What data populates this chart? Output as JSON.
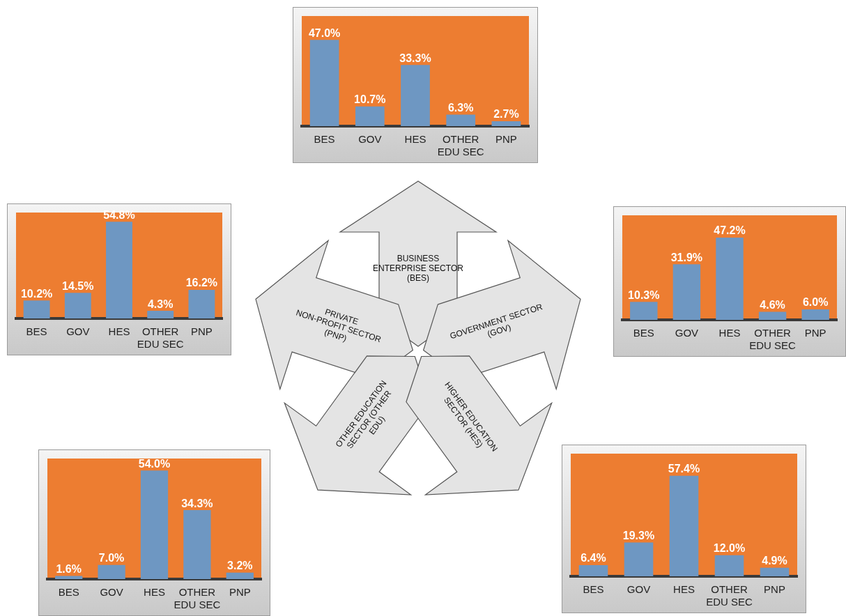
{
  "chart_data": [
    {
      "type": "bar",
      "categories": [
        "BES",
        "GOV",
        "HES",
        "OTHER EDU SEC",
        "PNP"
      ],
      "values": [
        47.0,
        10.7,
        33.3,
        6.3,
        2.7
      ],
      "value_labels": [
        "47.0%",
        "10.7%",
        "33.3%",
        "6.3%",
        "2.7%"
      ],
      "color": "#6e97c2",
      "tick_labels": "x"
    },
    {
      "type": "bar",
      "categories": [
        "BES",
        "GOV",
        "HES",
        "OTHER EDU SEC",
        "PNP"
      ],
      "values": [
        10.2,
        14.5,
        54.8,
        4.3,
        16.2
      ],
      "value_labels": [
        "10.2%",
        "14.5%",
        "54.8%",
        "4.3%",
        "16.2%"
      ],
      "color": "#6e97c2",
      "tick_labels": "x"
    },
    {
      "type": "bar",
      "categories": [
        "BES",
        "GOV",
        "HES",
        "OTHER EDU SEC",
        "PNP"
      ],
      "values": [
        10.3,
        31.9,
        47.2,
        4.6,
        6.0
      ],
      "value_labels": [
        "10.3%",
        "31.9%",
        "47.2%",
        "4.6%",
        "6.0%"
      ],
      "color": "#6e97c2",
      "tick_labels": "x"
    },
    {
      "type": "bar",
      "categories": [
        "BES",
        "GOV",
        "HES",
        "OTHER EDU SEC",
        "PNP"
      ],
      "values": [
        1.6,
        7.0,
        54.0,
        34.3,
        3.2
      ],
      "value_labels": [
        "1.6%",
        "7.0%",
        "54.0%",
        "34.3%",
        "3.2%"
      ],
      "color": "#6e97c2",
      "tick_labels": "x"
    },
    {
      "type": "bar",
      "categories": [
        "BES",
        "GOV",
        "HES",
        "OTHER EDU SEC",
        "PNP"
      ],
      "values": [
        6.4,
        19.3,
        57.4,
        12.0,
        4.9
      ],
      "value_labels": [
        "6.4%",
        "19.3%",
        "57.4%",
        "12.0%",
        "4.9%"
      ],
      "color": "#6e97c2",
      "tick_labels": "x"
    },
    {
      "type": "other",
      "annotations": [
        "BUSINESS ENTERPRISE SECTOR (BES)",
        "PRIVATE NON-PROFIT SECTOR (PNP)",
        "GOVERNMENT SECTOR (GOV)",
        "OTHER EDUCATION SECTOR (OTHER EDU)",
        "HIGHER EDUCATION SECTOR (HES)"
      ]
    }
  ]
}
